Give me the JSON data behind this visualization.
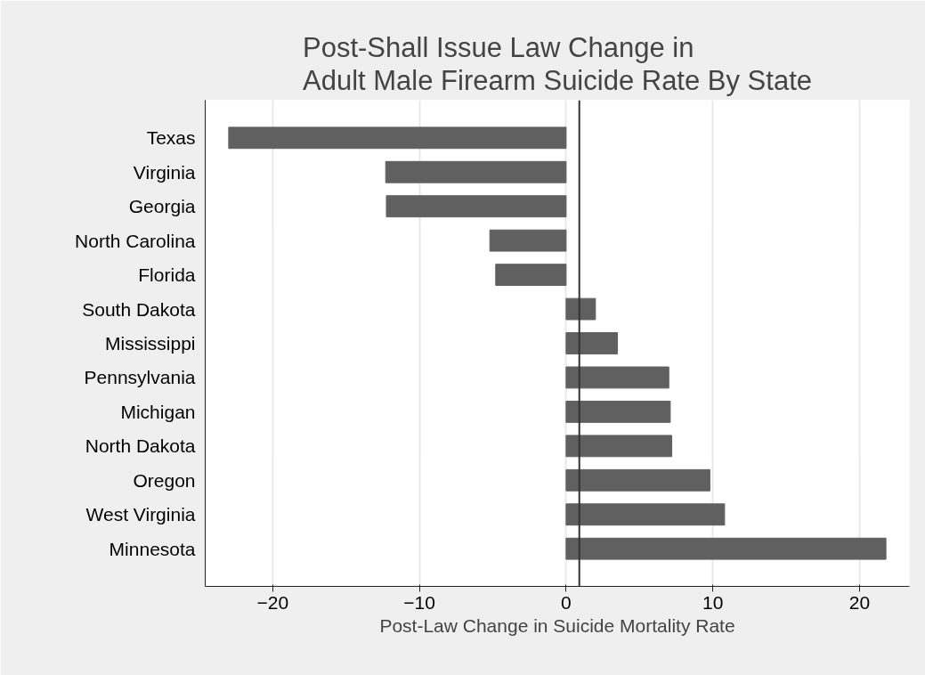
{
  "chart_data": {
    "type": "bar",
    "orientation": "horizontal",
    "title": "Post-Shall Issue Law Change in\nAdult Male Firearm Suicide Rate By State",
    "xlabel": "Post-Law Change in Suicide Mortality Rate",
    "categories": [
      "Texas",
      "Virginia",
      "Georgia",
      "North Carolina",
      "Florida",
      "South Dakota",
      "Mississippi",
      "Pennsylvania",
      "Michigan",
      "North Dakota",
      "Oregon",
      "West Virginia",
      "Minnesota"
    ],
    "values": [
      -23.0,
      -12.3,
      -12.25,
      -5.2,
      -4.8,
      2.0,
      3.5,
      7.0,
      7.1,
      7.2,
      9.8,
      10.8,
      21.8
    ],
    "color": "#606060",
    "xlim": [
      -24.6,
      23.4
    ],
    "xticks": [
      -20,
      -10,
      0,
      10,
      20
    ],
    "grid": "x",
    "ref_lines": [
      {
        "axis": "x",
        "value": 0.9,
        "color": "#333333"
      }
    ]
  }
}
